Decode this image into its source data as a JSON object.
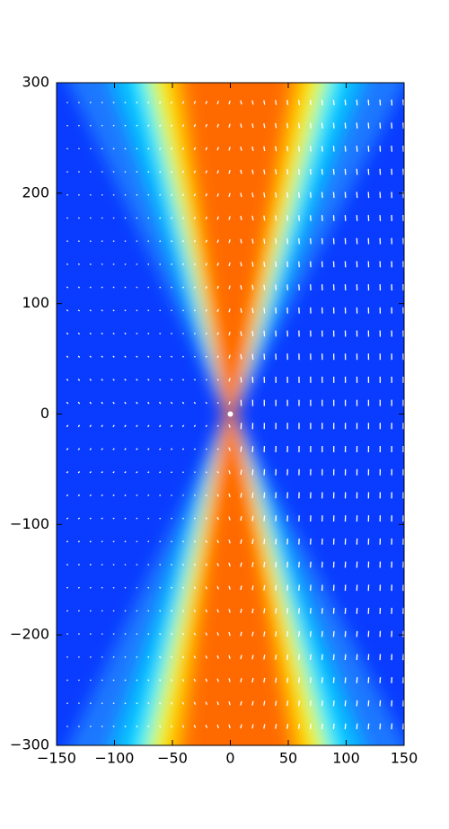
{
  "chart_data": {
    "type": "contour",
    "xlim": [
      -150,
      150
    ],
    "ylim": [
      -300,
      300
    ],
    "xticks": [
      {
        "value": -150,
        "label": "−150"
      },
      {
        "value": -100,
        "label": "−100"
      },
      {
        "value": -50,
        "label": "−50"
      },
      0,
      50,
      100,
      150
    ],
    "yticks": [
      {
        "value": -300,
        "label": "−300"
      },
      {
        "value": -200,
        "label": "−200"
      },
      {
        "value": -100,
        "label": "−100"
      },
      0,
      100,
      200,
      300
    ]
  }
}
